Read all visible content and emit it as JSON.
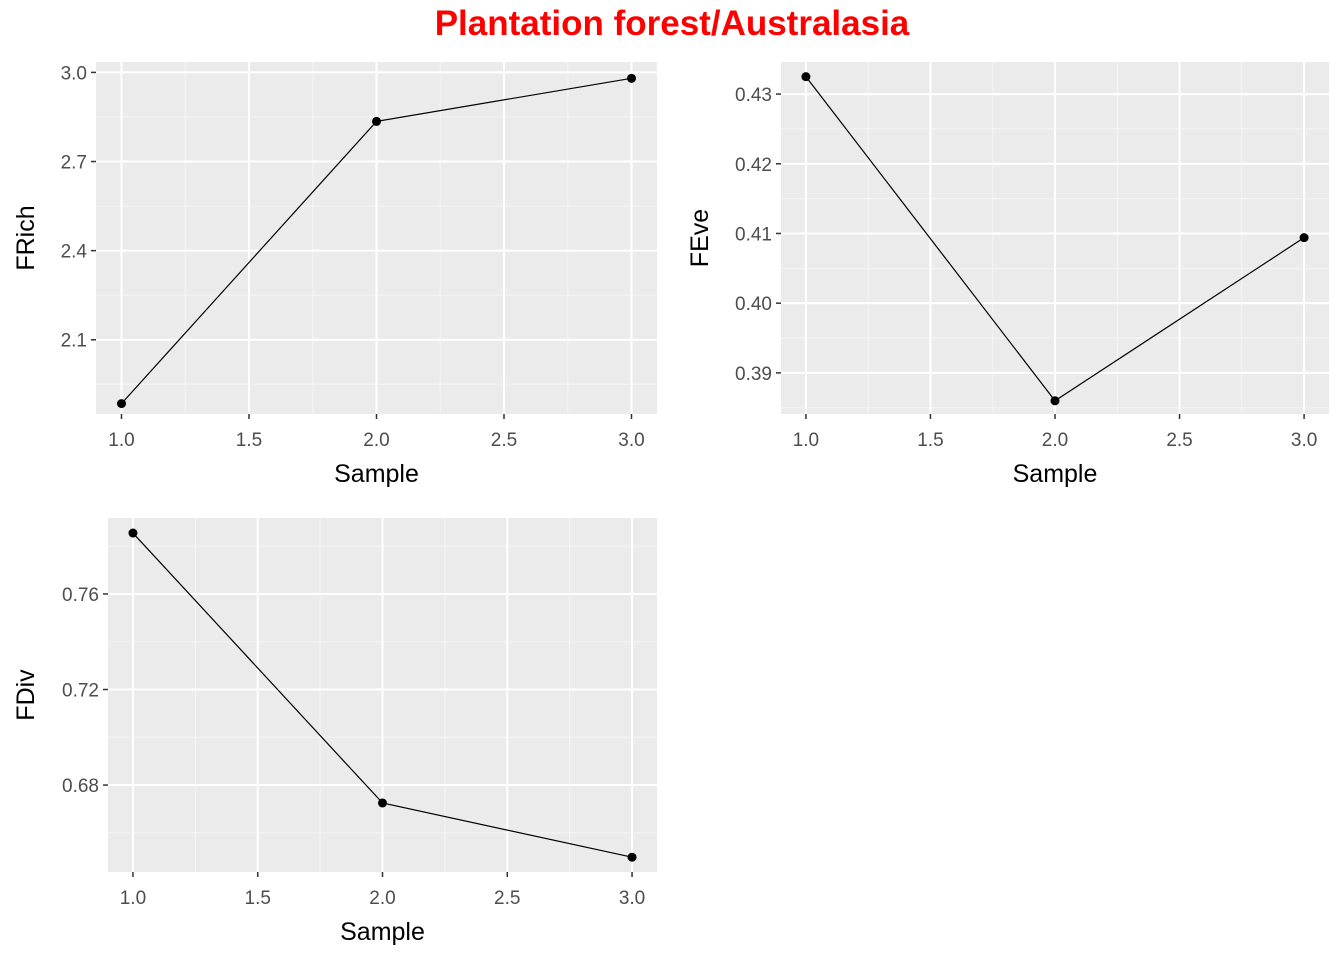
{
  "title": "Plantation forest/Australasia",
  "colors": {
    "title": "#ff0000",
    "panel_bg": "#ebebeb",
    "grid_major": "#ffffff",
    "grid_minor": "#f5f5f5",
    "tick_label": "#4d4d4d",
    "axis_title": "#000000",
    "line": "#000000",
    "point": "#000000"
  },
  "chart_data": [
    {
      "type": "line",
      "xlabel": "Sample",
      "ylabel": "FRich",
      "x": [
        1,
        2,
        3
      ],
      "y": [
        1.885,
        2.835,
        2.98
      ],
      "xlim": [
        0.9,
        3.1
      ],
      "ylim": [
        1.85,
        3.035
      ],
      "xticks": [
        "1.0",
        "1.5",
        "2.0",
        "2.5",
        "3.0"
      ],
      "yticks": [
        "2.1",
        "2.4",
        "2.7",
        "3.0"
      ],
      "grid": true
    },
    {
      "type": "line",
      "xlabel": "Sample",
      "ylabel": "FEve",
      "x": [
        1,
        2,
        3
      ],
      "y": [
        0.4325,
        0.386,
        0.4094
      ],
      "xlim": [
        0.9,
        3.1
      ],
      "ylim": [
        0.3841,
        0.4346
      ],
      "xticks": [
        "1.0",
        "1.5",
        "2.0",
        "2.5",
        "3.0"
      ],
      "yticks": [
        "0.39",
        "0.40",
        "0.41",
        "0.42",
        "0.43"
      ],
      "grid": true
    },
    {
      "type": "line",
      "xlabel": "Sample",
      "ylabel": "FDiv",
      "x": [
        1,
        2,
        3
      ],
      "y": [
        0.7855,
        0.6725,
        0.6498
      ],
      "xlim": [
        0.9,
        3.1
      ],
      "ylim": [
        0.6436,
        0.7918
      ],
      "xticks": [
        "1.0",
        "1.5",
        "2.0",
        "2.5",
        "3.0"
      ],
      "yticks": [
        "0.68",
        "0.72",
        "0.76"
      ],
      "grid": true
    }
  ]
}
